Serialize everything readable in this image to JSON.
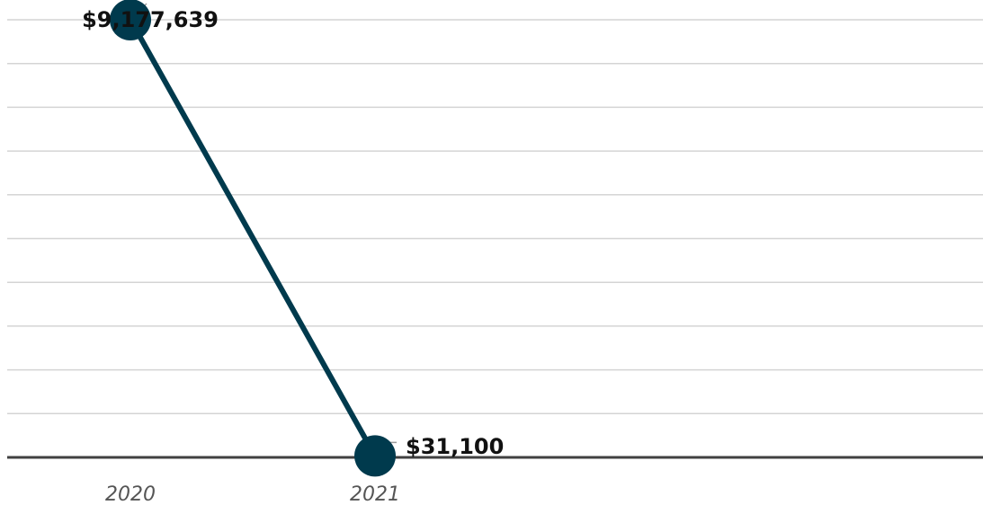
{
  "chart_data": {
    "type": "line",
    "title": "",
    "xlabel": "",
    "ylabel": "",
    "categories": [
      "2020",
      "2021"
    ],
    "series": [
      {
        "values": [
          9177639,
          31100
        ],
        "data_labels": [
          "$9,177,639",
          "$31,100"
        ],
        "color": "#003a4d"
      }
    ],
    "ylim": [
      0,
      9177639
    ],
    "grid": true,
    "gridline_count": 10,
    "legend": "none",
    "marker": "circle"
  }
}
